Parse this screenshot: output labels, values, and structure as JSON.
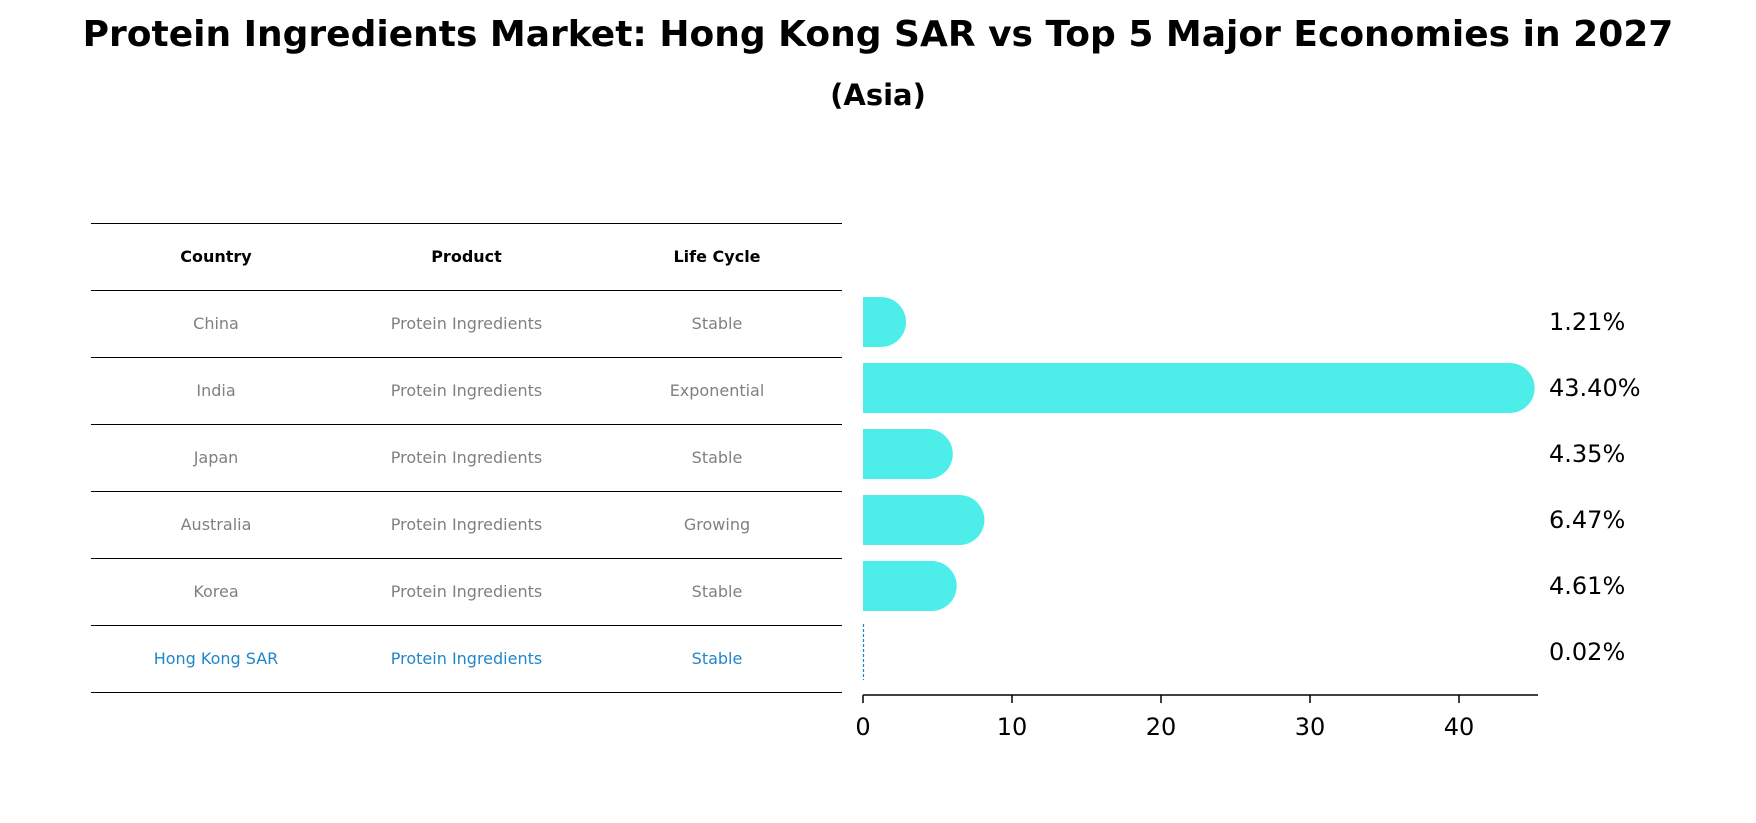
{
  "title": "Protein Ingredients Market: Hong Kong SAR vs Top 5 Major Economies in 2027",
  "subtitle": "(Asia)",
  "table": {
    "headers": [
      "Country",
      "Product",
      "Life Cycle"
    ],
    "rows": [
      {
        "country": "China",
        "product": "Protein Ingredients",
        "life_cycle": "Stable"
      },
      {
        "country": "India",
        "product": "Protein Ingredients",
        "life_cycle": "Exponential"
      },
      {
        "country": "Japan",
        "product": "Protein Ingredients",
        "life_cycle": "Stable"
      },
      {
        "country": "Australia",
        "product": "Protein Ingredients",
        "life_cycle": "Growing"
      },
      {
        "country": "Korea",
        "product": "Protein Ingredients",
        "life_cycle": "Stable"
      },
      {
        "country": "Hong Kong SAR",
        "product": "Protein Ingredients",
        "life_cycle": "Stable"
      }
    ]
  },
  "colors": {
    "bar": "#4deeea",
    "highlight": "#1f86c9",
    "text_muted": "#808080"
  },
  "chart_data": {
    "type": "bar",
    "orientation": "horizontal",
    "categories": [
      "China",
      "India",
      "Japan",
      "Australia",
      "Korea",
      "Hong Kong SAR"
    ],
    "values": [
      1.21,
      43.4,
      4.35,
      6.47,
      4.61,
      0.02
    ],
    "value_labels": [
      "1.21%",
      "43.40%",
      "4.35%",
      "6.47%",
      "4.61%",
      "0.02%"
    ],
    "highlight_category": "Hong Kong SAR",
    "xlim": [
      0,
      45.6
    ],
    "xticks": [
      0,
      10,
      20,
      30,
      40
    ],
    "xlabel": "",
    "ylabel": ""
  }
}
